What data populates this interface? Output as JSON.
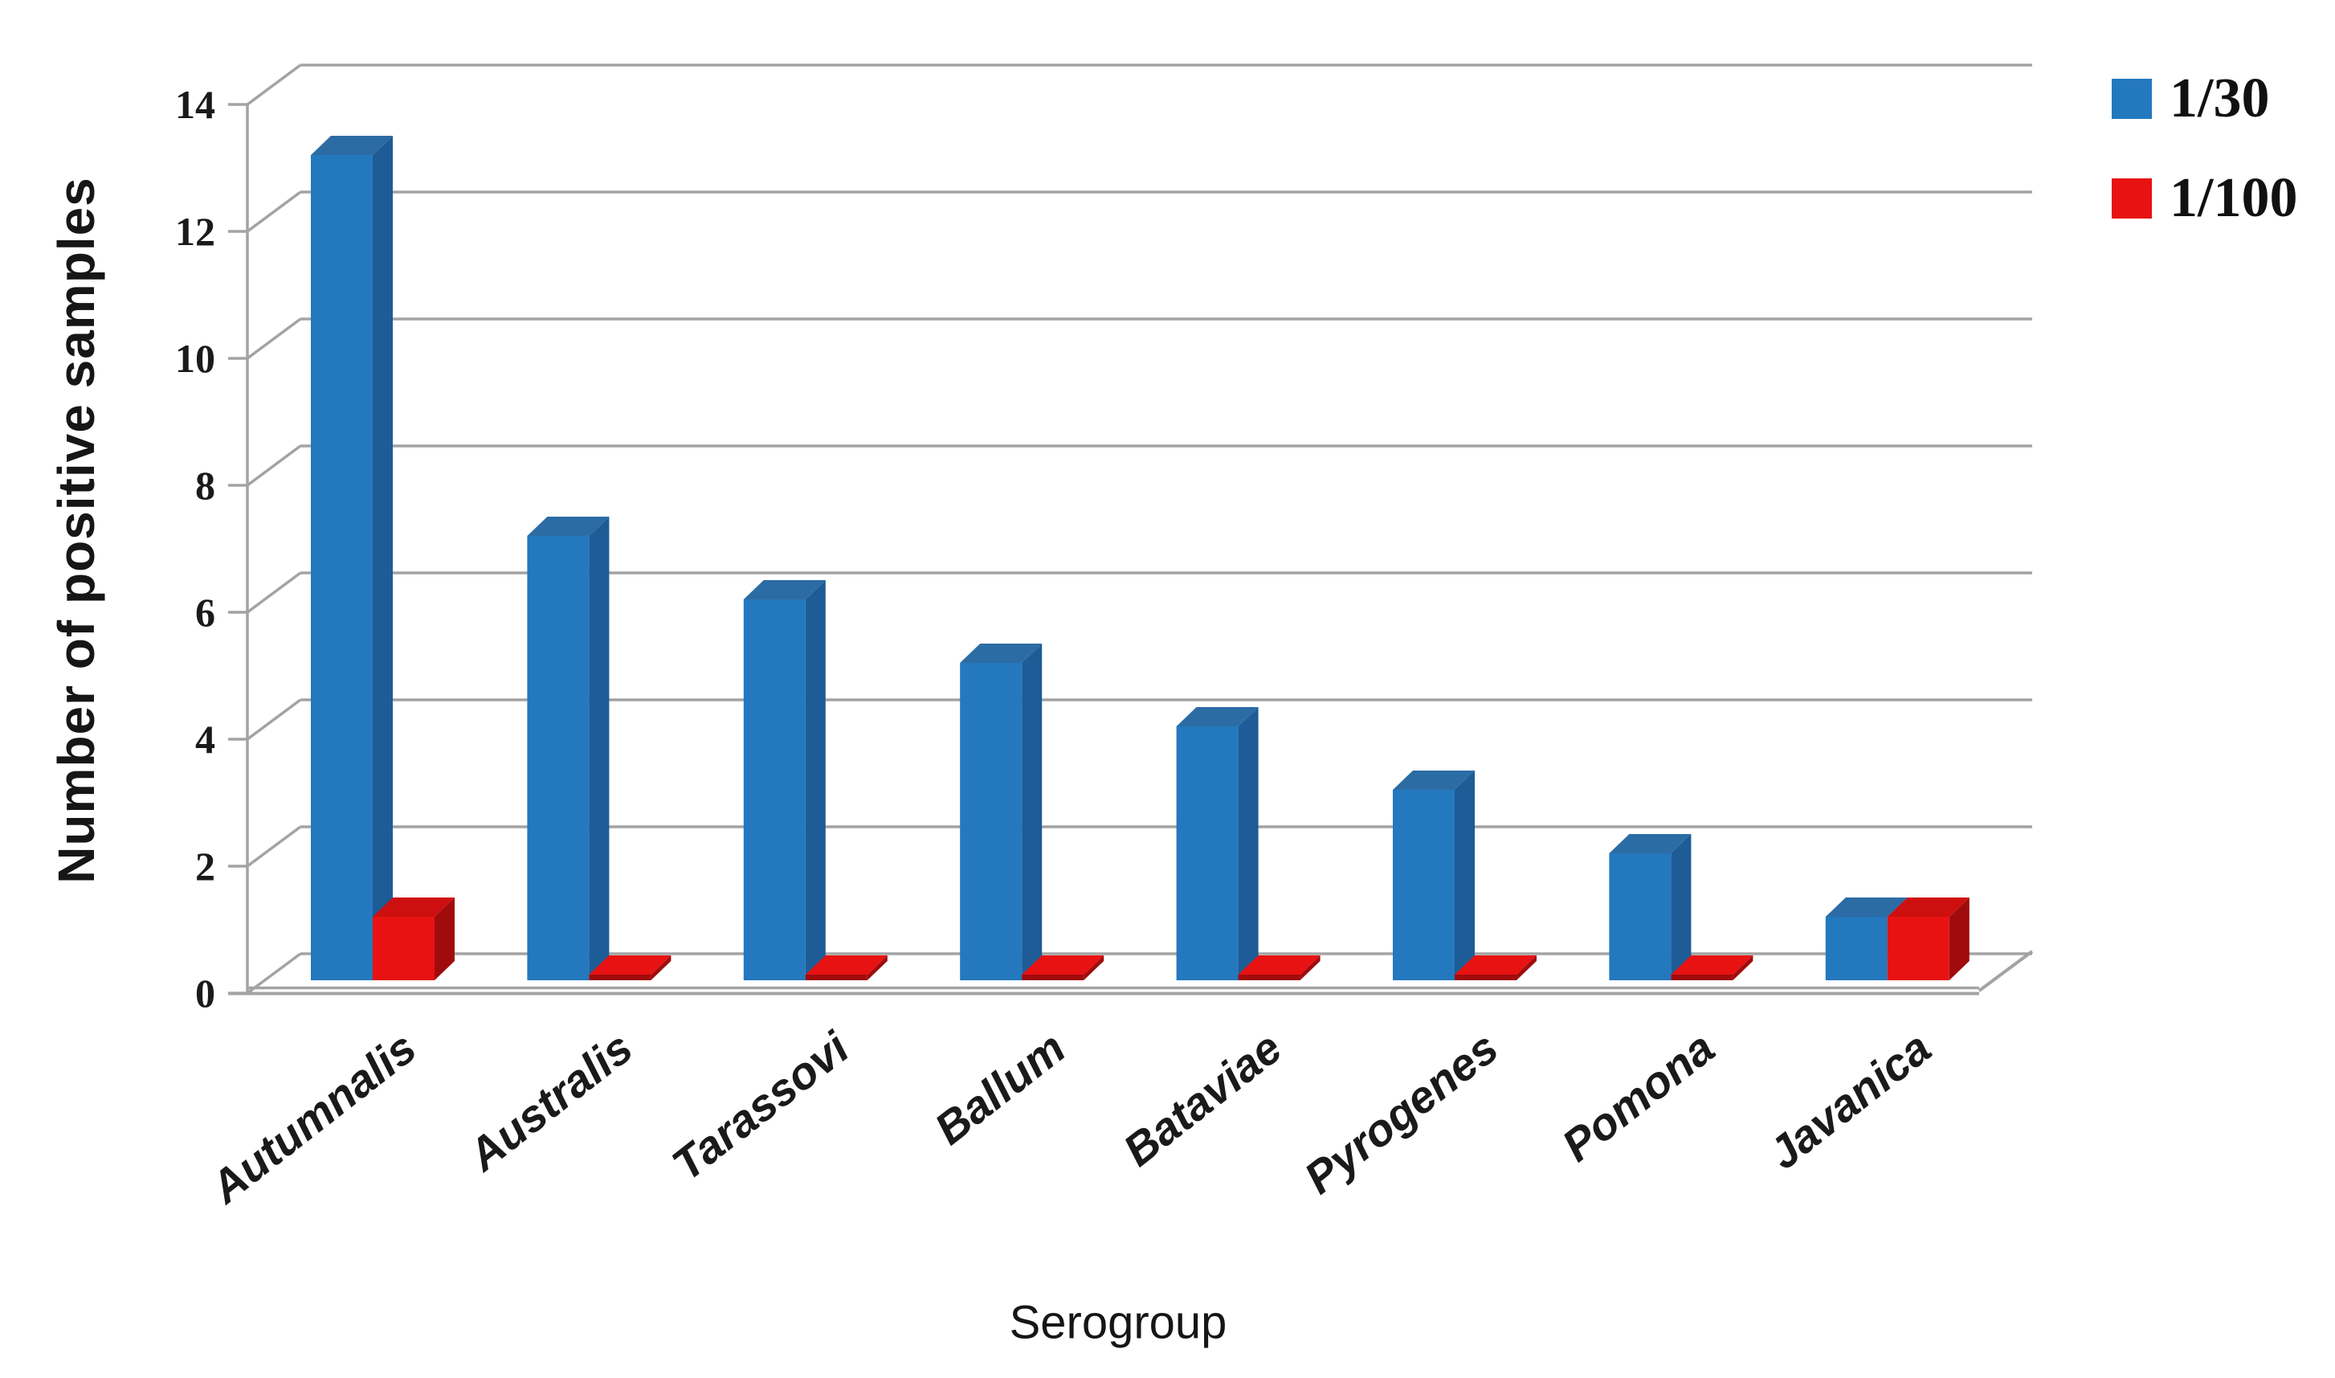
{
  "chart_data": {
    "type": "bar",
    "style": "3d-clustered",
    "title": "",
    "xlabel": "Serogroup",
    "ylabel": "Number of positive samples",
    "categories": [
      "Autumnalis",
      "Australis",
      "Tarassovi",
      "Ballum",
      "Bataviae",
      "Pyrogenes",
      "Pomona",
      "Javanica"
    ],
    "series": [
      {
        "name": "1/30",
        "values": [
          13,
          7,
          6,
          5,
          4,
          3,
          2,
          1
        ],
        "colors": {
          "front": "#2478BE",
          "top": "#2C6CA4",
          "side": "#1D5C96"
        }
      },
      {
        "name": "1/100",
        "values": [
          1,
          0,
          0,
          0,
          0,
          0,
          0,
          1
        ],
        "colors": {
          "front": "#E81212",
          "top": "#CE0F0F",
          "side": "#A00C0C"
        }
      }
    ],
    "ylim": [
      0,
      14
    ],
    "ytick_step": 2,
    "ytick_labels": [
      "0",
      "2",
      "4",
      "6",
      "8",
      "10",
      "12",
      "14"
    ],
    "grid": true,
    "legend_position": "top-right",
    "axis_color": "#A3A3A3",
    "text_color": "#1A1A1A",
    "background": "#FFFFFF"
  }
}
